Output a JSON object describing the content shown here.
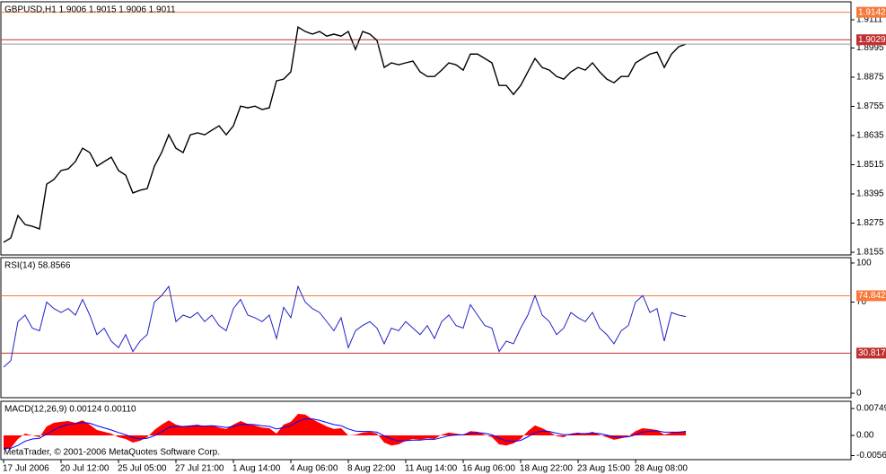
{
  "chart_data": [
    {
      "type": "line",
      "title": "GBPUSD,H1  1.9006 1.9015 1.9006 1.9011",
      "color": "#000000",
      "values": [
        1.8196,
        1.8214,
        1.8306,
        1.8269,
        1.8262,
        1.8251,
        1.8435,
        1.8454,
        1.8491,
        1.8498,
        1.8528,
        1.8583,
        1.8565,
        1.8509,
        1.8528,
        1.8546,
        1.8491,
        1.8472,
        1.8399,
        1.841,
        1.8417,
        1.8509,
        1.8565,
        1.8638,
        1.8583,
        1.8565,
        1.8638,
        1.8646,
        1.8638,
        1.8657,
        1.8675,
        1.8638,
        1.8675,
        1.8756,
        1.8749,
        1.8756,
        1.8742,
        1.8749,
        1.886,
        1.8867,
        1.8897,
        1.9081,
        1.9063,
        1.9052,
        1.9063,
        1.9044,
        1.9052,
        1.9044,
        1.9063,
        1.8989,
        1.9063,
        1.9052,
        1.9026,
        1.8915,
        1.8934,
        1.8926,
        1.8934,
        1.8941,
        1.8897,
        1.8878,
        1.8878,
        1.8904,
        1.8934,
        1.8926,
        1.8904,
        1.897,
        1.897,
        1.8952,
        1.8934,
        1.8841,
        1.8841,
        1.8804,
        1.8841,
        1.8897,
        1.8952,
        1.8915,
        1.8904,
        1.8878,
        1.8867,
        1.8897,
        1.8915,
        1.8904,
        1.8934,
        1.8897,
        1.8867,
        1.8852,
        1.8878,
        1.8878,
        1.8934,
        1.8952,
        1.897,
        1.8978,
        1.8915,
        1.897,
        1.9,
        1.9011
      ],
      "ylim": [
        1.8144,
        1.9185
      ],
      "yticks": [
        1.9111,
        1.8995,
        1.8875,
        1.8755,
        1.8635,
        1.8515,
        1.8395,
        1.8275,
        1.8155
      ],
      "hlines": [
        {
          "value": 1.9142,
          "color": "#f5793b"
        },
        {
          "value": 1.9029,
          "color": "#c03030"
        }
      ]
    },
    {
      "type": "line",
      "title": "RSI(14) 58.8566",
      "color": "#2020c8",
      "values": [
        20,
        25,
        55,
        60,
        50,
        48,
        70,
        65,
        62,
        65,
        60,
        72,
        60,
        45,
        50,
        40,
        35,
        45,
        32,
        40,
        45,
        70,
        75,
        82,
        55,
        60,
        58,
        62,
        55,
        60,
        52,
        48,
        65,
        72,
        60,
        58,
        55,
        60,
        42,
        66,
        58,
        82,
        70,
        65,
        62,
        55,
        48,
        58,
        35,
        48,
        52,
        55,
        50,
        38,
        50,
        48,
        55,
        50,
        45,
        52,
        42,
        55,
        60,
        52,
        50,
        68,
        60,
        52,
        50,
        32,
        40,
        38,
        50,
        60,
        75,
        60,
        55,
        45,
        50,
        62,
        58,
        55,
        62,
        50,
        45,
        38,
        48,
        52,
        70,
        75,
        62,
        65,
        40,
        62,
        60,
        58.86
      ],
      "ylim": [
        -3.4,
        104.1
      ],
      "yticks": [
        100,
        70,
        0
      ],
      "hlines": [
        {
          "value": 74.8428,
          "color": "#f5793b"
        },
        {
          "value": 30.8176,
          "color": "#c03030"
        }
      ]
    },
    {
      "type": "area",
      "title": "MACD(12,26,9) 0.00124 0.00110",
      "watermark": "MetaTrader, © 2001-2006 MetaQuotes Software Corp.",
      "series": [
        {
          "style": "area",
          "color": "#ff0000",
          "values": [
            -0.004,
            -0.0035,
            -0.001,
            0.0005,
            0.0,
            -0.0005,
            0.0025,
            0.0035,
            0.0038,
            0.004,
            0.0035,
            0.0042,
            0.003,
            0.0015,
            0.001,
            0.0005,
            -0.0005,
            -0.001,
            -0.002,
            -0.0015,
            -0.0005,
            0.0015,
            0.003,
            0.0042,
            0.003,
            0.0025,
            0.0028,
            0.003,
            0.0025,
            0.0028,
            0.0022,
            0.0018,
            0.003,
            0.004,
            0.0032,
            0.0028,
            0.0022,
            0.002,
            0.0005,
            0.003,
            0.0038,
            0.006,
            0.0058,
            0.0045,
            0.0035,
            0.0025,
            0.0018,
            0.002,
            0.0,
            0.0002,
            0.0008,
            0.001,
            0.0005,
            -0.002,
            -0.0028,
            -0.0025,
            -0.0015,
            -0.001,
            -0.0012,
            -0.0008,
            -0.001,
            0.0002,
            0.0008,
            0.0005,
            0.0002,
            0.0012,
            0.001,
            0.0002,
            -0.0005,
            -0.0025,
            -0.0028,
            -0.0022,
            -0.001,
            0.0012,
            0.0028,
            0.002,
            0.001,
            -0.0002,
            -0.0005,
            0.0005,
            0.0008,
            0.0004,
            0.001,
            0.0002,
            -0.0005,
            -0.0012,
            -0.0008,
            -0.0002,
            0.0012,
            0.002,
            0.0018,
            0.0015,
            0.0002,
            0.0008,
            0.001,
            0.00124
          ]
        },
        {
          "style": "line",
          "color": "#0000ff",
          "values": [
            -0.0035,
            -0.0036,
            -0.0028,
            -0.0016,
            -0.001,
            -0.0008,
            0.0004,
            0.0015,
            0.0024,
            0.0031,
            0.0033,
            0.0036,
            0.0034,
            0.0027,
            0.0021,
            0.0015,
            0.0008,
            0.0002,
            -0.0006,
            -0.001,
            -0.0008,
            -0.0001,
            0.001,
            0.0022,
            0.0025,
            0.0025,
            0.0026,
            0.0027,
            0.0026,
            0.0027,
            0.0025,
            0.0022,
            0.0025,
            0.003,
            0.0031,
            0.003,
            0.0027,
            0.0025,
            0.0018,
            0.0022,
            0.0027,
            0.0039,
            0.0046,
            0.0046,
            0.0042,
            0.0036,
            0.003,
            0.0027,
            0.0018,
            0.0012,
            0.0011,
            0.0011,
            0.0009,
            -0.0001,
            -0.001,
            -0.0015,
            -0.0015,
            -0.0013,
            -0.0013,
            -0.0011,
            -0.0011,
            -0.0006,
            -0.0001,
            0.0001,
            0.0002,
            0.0006,
            0.0008,
            0.0006,
            0.0002,
            -0.0008,
            -0.0015,
            -0.0017,
            -0.0014,
            -0.0004,
            0.0008,
            0.0012,
            0.0011,
            0.0006,
            0.0002,
            0.0003,
            0.0005,
            0.0005,
            0.0007,
            0.0005,
            0.0001,
            -0.0004,
            -0.0005,
            -0.0004,
            0.0002,
            0.0009,
            0.0012,
            0.0013,
            0.0009,
            0.0009,
            0.0009,
            0.0011
          ]
        }
      ],
      "ylim": [
        -0.00674,
        0.0095
      ],
      "yticks": [
        0.00749,
        {
          "value": 0,
          "label": "0.00"
        },
        -0.00561
      ],
      "categories": [
        "17 Jul 2006",
        null,
        null,
        null,
        null,
        null,
        null,
        null,
        "20 Jul 12:00",
        null,
        null,
        null,
        null,
        null,
        null,
        null,
        "25 Jul 05:00",
        null,
        null,
        null,
        null,
        null,
        null,
        null,
        "27 Jul 21:00",
        null,
        null,
        null,
        null,
        null,
        null,
        null,
        "1 Aug 14:00",
        null,
        null,
        null,
        null,
        null,
        null,
        null,
        "4 Aug 06:00",
        null,
        null,
        null,
        null,
        null,
        null,
        null,
        "8 Aug 22:00",
        null,
        null,
        null,
        null,
        null,
        null,
        null,
        "11 Aug 14:00",
        null,
        null,
        null,
        null,
        null,
        null,
        null,
        "16 Aug 06:00",
        null,
        null,
        null,
        null,
        null,
        null,
        null,
        "18 Aug 22:00",
        null,
        null,
        null,
        null,
        null,
        null,
        null,
        "23 Aug 15:00",
        null,
        null,
        null,
        null,
        null,
        null,
        null,
        "28 Aug 08:00",
        null,
        null,
        null,
        null,
        null,
        null,
        null
      ]
    }
  ]
}
